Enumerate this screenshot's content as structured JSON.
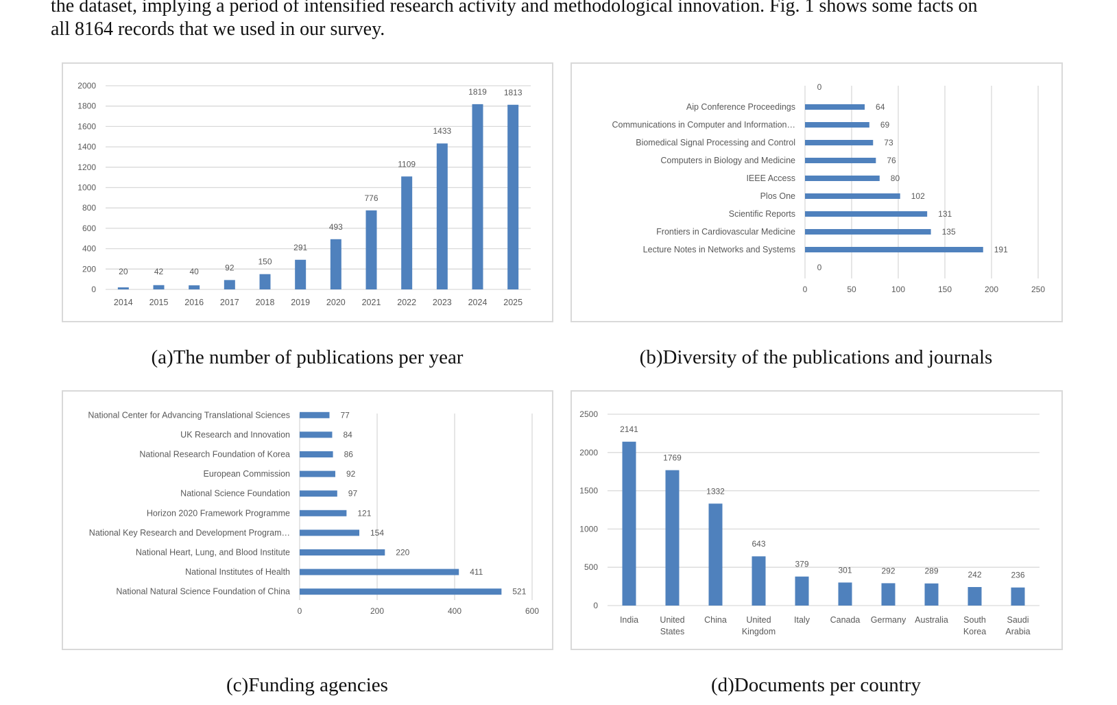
{
  "paragraph": {
    "line1": "the dataset, implying a period of intensified research activity and methodological innovation. Fig. 1 shows some facts on",
    "line2": "all 8164 records that we used in our survey."
  },
  "captions": {
    "a": "(a)The number of publications per year",
    "b": "(b)Diversity of the publications and journals",
    "c": "(c)Funding agencies",
    "d": "(d)Documents per country"
  },
  "colors": {
    "bar": "#4f81bd",
    "grid": "#d9d9d9",
    "text": "#595959",
    "border": "#d9d9d9"
  },
  "chart_data": [
    {
      "type": "bar",
      "orientation": "vertical",
      "categories": [
        "2014",
        "2015",
        "2016",
        "2017",
        "2018",
        "2019",
        "2020",
        "2021",
        "2022",
        "2023",
        "2024",
        "2025"
      ],
      "values": [
        20,
        42,
        40,
        92,
        150,
        291,
        493,
        776,
        1109,
        1433,
        1819,
        1813
      ],
      "data_labels": [
        "20",
        "42",
        "40",
        "92",
        "150",
        "291",
        "493",
        "776",
        "1109",
        "1433",
        "1819",
        "1813"
      ],
      "y_ticks": [
        "0",
        "200",
        "400",
        "600",
        "800",
        "1000",
        "1200",
        "1400",
        "1600",
        "1800",
        "2000"
      ],
      "ylim": [
        0,
        2000
      ],
      "grid": true
    },
    {
      "type": "bar",
      "orientation": "horizontal",
      "categories": [
        "Aip Conference Proceedings",
        "Communications in Computer and Information…",
        "Biomedical Signal Processing and Control",
        "Computers in Biology and Medicine",
        "IEEE Access",
        "Plos One",
        "Scientific Reports",
        "Frontiers in Cardiovascular Medicine",
        "Lecture Notes in Networks and Systems"
      ],
      "values": [
        64,
        69,
        73,
        76,
        80,
        102,
        131,
        135,
        191
      ],
      "data_labels": [
        "64",
        "69",
        "73",
        "76",
        "80",
        "102",
        "131",
        "135",
        "191"
      ],
      "extra_labels": [
        "0",
        "0"
      ],
      "x_ticks": [
        "0",
        "50",
        "100",
        "150",
        "200",
        "250"
      ],
      "xlim": [
        0,
        250
      ],
      "grid": true
    },
    {
      "type": "bar",
      "orientation": "horizontal",
      "categories": [
        "National Center for Advancing Translational Sciences",
        "UK Research and Innovation",
        "National Research Foundation of Korea",
        "European Commission",
        "National Science Foundation",
        "Horizon 2020 Framework Programme",
        "National Key Research and Development Program…",
        "National Heart, Lung, and Blood Institute",
        "National Institutes of Health",
        "National Natural Science Foundation of China"
      ],
      "values": [
        77,
        84,
        86,
        92,
        97,
        121,
        154,
        220,
        411,
        521
      ],
      "data_labels": [
        "77",
        "84",
        "86",
        "92",
        "97",
        "121",
        "154",
        "220",
        "411",
        "521"
      ],
      "x_ticks": [
        "0",
        "200",
        "400",
        "600"
      ],
      "xlim": [
        0,
        600
      ],
      "grid": true
    },
    {
      "type": "bar",
      "orientation": "vertical",
      "categories": [
        [
          "India"
        ],
        [
          "United",
          "States"
        ],
        [
          "China"
        ],
        [
          "United",
          "Kingdom"
        ],
        [
          "Italy"
        ],
        [
          "Canada"
        ],
        [
          "Germany"
        ],
        [
          "Australia"
        ],
        [
          "South",
          "Korea"
        ],
        [
          "Saudi",
          "Arabia"
        ]
      ],
      "values": [
        2141,
        1769,
        1332,
        643,
        379,
        301,
        292,
        289,
        242,
        236
      ],
      "data_labels": [
        "2141",
        "1769",
        "1332",
        "643",
        "379",
        "301",
        "292",
        "289",
        "242",
        "236"
      ],
      "y_ticks": [
        "0",
        "500",
        "1000",
        "1500",
        "2000",
        "2500"
      ],
      "ylim": [
        0,
        2500
      ],
      "grid": true
    }
  ]
}
